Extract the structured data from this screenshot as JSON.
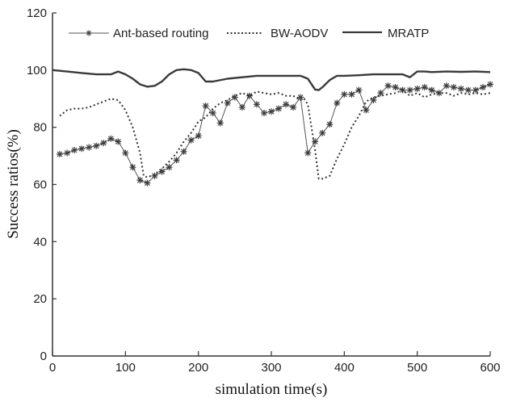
{
  "chart_data": {
    "type": "line",
    "title": "",
    "xlabel": "simulation time(s)",
    "ylabel": "Success ratios(%)",
    "xlim": [
      0,
      600
    ],
    "ylim": [
      0,
      120
    ],
    "xticks": [
      0,
      100,
      200,
      300,
      400,
      500,
      600
    ],
    "yticks": [
      0,
      20,
      40,
      60,
      80,
      100,
      120
    ],
    "grid": false,
    "legend_position": "top inside, horizontal",
    "legend": [
      "Ant-based routing",
      "BW-AODV",
      "MRATP"
    ],
    "series": [
      {
        "name": "Ant-based routing",
        "style": "solid-thin-star-markers",
        "color": "#555555",
        "x": [
          10,
          20,
          30,
          40,
          50,
          60,
          70,
          80,
          90,
          100,
          110,
          120,
          130,
          140,
          150,
          160,
          170,
          180,
          190,
          200,
          210,
          220,
          230,
          240,
          250,
          260,
          270,
          280,
          290,
          300,
          310,
          320,
          330,
          340,
          350,
          360,
          370,
          380,
          390,
          400,
          410,
          420,
          430,
          440,
          450,
          460,
          470,
          480,
          490,
          500,
          510,
          520,
          530,
          540,
          550,
          560,
          570,
          580,
          590,
          600
        ],
        "values": [
          70.6,
          71,
          72,
          72.5,
          73,
          73.5,
          74.5,
          76,
          75,
          71,
          66,
          61.5,
          60.5,
          63,
          64.5,
          66,
          68.5,
          71.5,
          75.5,
          77,
          87.5,
          85,
          81.5,
          88.5,
          90.5,
          87,
          91,
          88,
          85,
          85.5,
          86.5,
          88,
          87,
          90.5,
          71,
          75,
          78,
          81,
          88.5,
          91.5,
          91.5,
          93,
          86,
          89.5,
          92,
          94.5,
          94,
          93,
          93,
          93.5,
          94,
          93,
          92,
          94.5,
          94,
          93.5,
          93,
          93,
          94,
          95
        ]
      },
      {
        "name": "BW-AODV",
        "style": "dotted",
        "color": "#333333",
        "x": [
          10,
          20,
          30,
          40,
          50,
          60,
          70,
          80,
          90,
          100,
          110,
          120,
          125,
          130,
          140,
          150,
          160,
          170,
          180,
          190,
          200,
          210,
          220,
          230,
          240,
          250,
          260,
          270,
          280,
          290,
          300,
          310,
          320,
          330,
          340,
          345,
          350,
          360,
          365,
          370,
          380,
          390,
          400,
          410,
          420,
          430,
          440,
          450,
          460,
          470,
          480,
          490,
          500,
          510,
          520,
          530,
          540,
          550,
          560,
          570,
          580,
          590,
          600
        ],
        "values": [
          84,
          86,
          86.5,
          86.5,
          87,
          88,
          89,
          90,
          89.5,
          86,
          80,
          71,
          63,
          62.5,
          63.5,
          65.5,
          68,
          71,
          75,
          78,
          82,
          83.5,
          86.5,
          88.5,
          89.5,
          91,
          92,
          91,
          92.5,
          92,
          91.5,
          92,
          91,
          91,
          89.5,
          90,
          88,
          72,
          62,
          62,
          63,
          69,
          74,
          80,
          84,
          89,
          90.5,
          91,
          91.5,
          92,
          93,
          91,
          92,
          90.5,
          91.5,
          92,
          92,
          91,
          92,
          91.5,
          92,
          91.5,
          92
        ]
      },
      {
        "name": "MRATP",
        "style": "solid-thick",
        "color": "#3a3a3a",
        "x": [
          0,
          20,
          40,
          60,
          80,
          90,
          100,
          110,
          120,
          130,
          140,
          150,
          160,
          170,
          180,
          190,
          200,
          210,
          220,
          240,
          260,
          280,
          300,
          320,
          340,
          350,
          360,
          365,
          370,
          380,
          390,
          400,
          420,
          440,
          460,
          480,
          490,
          500,
          510,
          520,
          540,
          560,
          580,
          600
        ],
        "values": [
          100,
          99.5,
          99,
          98.5,
          98.5,
          99.5,
          98.5,
          97,
          95,
          94.2,
          94.5,
          96,
          98.5,
          100,
          100.3,
          100,
          99,
          96,
          96,
          97,
          97.5,
          98,
          98,
          98,
          98,
          97,
          93.2,
          93,
          94,
          96.5,
          98,
          98,
          98.2,
          98.5,
          98.5,
          98.5,
          97.5,
          99.5,
          99.5,
          99.3,
          99.5,
          99.4,
          99.5,
          99.3
        ]
      }
    ]
  },
  "axes": {
    "x_tick_labels": [
      "0",
      "100",
      "200",
      "300",
      "400",
      "500",
      "600"
    ],
    "y_tick_labels": [
      "0",
      "20",
      "40",
      "60",
      "80",
      "100",
      "120"
    ],
    "x_title": "simulation time(s)",
    "y_title": "Success ratios(%)"
  },
  "legend": {
    "items": [
      {
        "label": "Ant-based routing"
      },
      {
        "label": "BW-AODV"
      },
      {
        "label": "MRATP"
      }
    ]
  }
}
